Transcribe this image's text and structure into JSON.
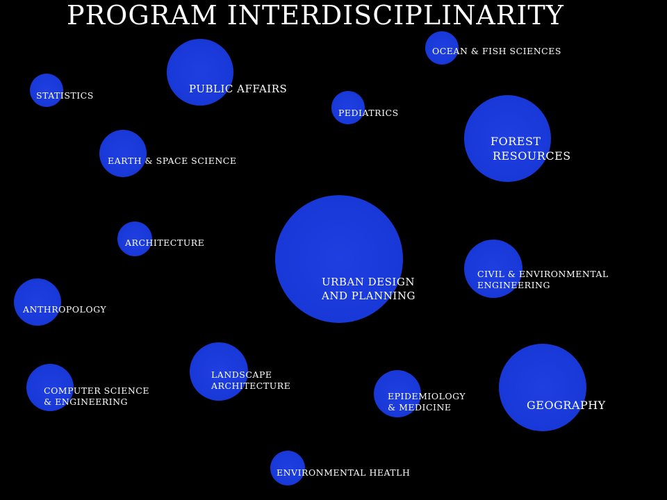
{
  "title": "PROGRAM INTERDISCIPLINARITY",
  "nodes": [
    {
      "id": "public-affairs",
      "lines": [
        "PUBLIC AFFAIRS"
      ]
    },
    {
      "id": "ocean-fish",
      "lines": [
        "OCEAN & FISH SCIENCES"
      ]
    },
    {
      "id": "statistics",
      "lines": [
        "STATISTICS"
      ]
    },
    {
      "id": "pediatrics",
      "lines": [
        "PEDIATRICS"
      ]
    },
    {
      "id": "forest-resources",
      "lines": [
        "FOREST",
        "RESOURCES"
      ]
    },
    {
      "id": "earth-space",
      "lines": [
        "EARTH & SPACE SCIENCE"
      ]
    },
    {
      "id": "architecture",
      "lines": [
        "ARCHITECTURE"
      ]
    },
    {
      "id": "urban-design",
      "lines": [
        "URBAN DESIGN",
        "AND PLANNING"
      ]
    },
    {
      "id": "civil-env",
      "lines": [
        "CIVIL & ENVIRONMENTAL",
        "ENGINEERING"
      ]
    },
    {
      "id": "anthropology",
      "lines": [
        "ANTHROPOLOGY"
      ]
    },
    {
      "id": "landscape",
      "lines": [
        "LANDSCAPE",
        "ARCHITECTURE"
      ]
    },
    {
      "id": "computer-science",
      "lines": [
        "COMPUTER SCIENCE",
        "& ENGINEERING"
      ]
    },
    {
      "id": "epidemiology",
      "lines": [
        "EPIDEMIOLOGY",
        "& MEDICINE"
      ]
    },
    {
      "id": "geography",
      "lines": [
        "GEOGRAPHY"
      ]
    },
    {
      "id": "environmental-health",
      "lines": [
        "ENVIRONMENTAL HEATLH"
      ]
    }
  ],
  "colors": {
    "background": "#000000",
    "bubble": "#1838d8",
    "text": "#ffffff"
  }
}
